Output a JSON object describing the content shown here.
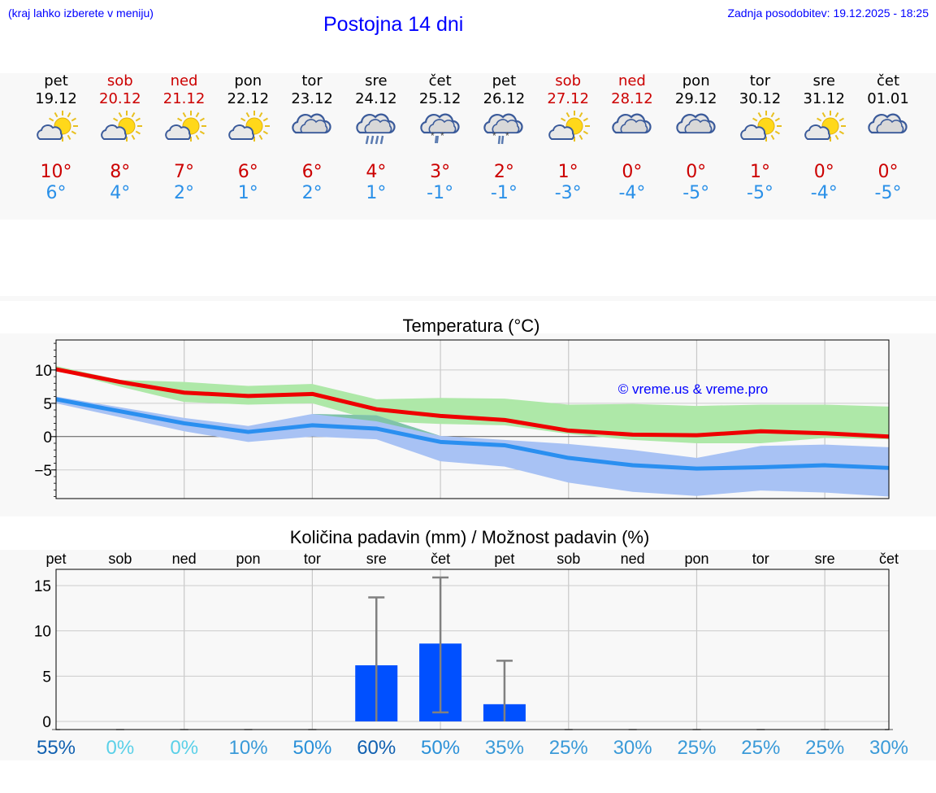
{
  "header": {
    "hint": "(kraj lahko izberete v meniju)",
    "title": "Postojna 14 dni",
    "updated": "Zadnja posodobitev: 19.12.2025 - 18:25"
  },
  "days": [
    {
      "name": "pet",
      "date": "19.12",
      "weekend": false,
      "icon": "sun-cloud-icon",
      "tmax": "10°",
      "tmin": "6°",
      "precip_chance": "55%"
    },
    {
      "name": "sob",
      "date": "20.12",
      "weekend": true,
      "icon": "sun-cloud-icon",
      "tmax": "8°",
      "tmin": "4°",
      "precip_chance": "0%"
    },
    {
      "name": "ned",
      "date": "21.12",
      "weekend": true,
      "icon": "sun-cloud-icon",
      "tmax": "7°",
      "tmin": "2°",
      "precip_chance": "0%"
    },
    {
      "name": "pon",
      "date": "22.12",
      "weekend": false,
      "icon": "sun-cloud-icon",
      "tmax": "6°",
      "tmin": "1°",
      "precip_chance": "10%"
    },
    {
      "name": "tor",
      "date": "23.12",
      "weekend": false,
      "icon": "cloud-icon",
      "tmax": "6°",
      "tmin": "2°",
      "precip_chance": "50%"
    },
    {
      "name": "sre",
      "date": "24.12",
      "weekend": false,
      "icon": "cloud-rain-icon",
      "tmax": "4°",
      "tmin": "1°",
      "precip_chance": "60%"
    },
    {
      "name": "čet",
      "date": "25.12",
      "weekend": false,
      "icon": "cloud-snow-icon",
      "tmax": "3°",
      "tmin": "-1°",
      "precip_chance": "50%"
    },
    {
      "name": "pet",
      "date": "26.12",
      "weekend": false,
      "icon": "cloud-sleet-icon",
      "tmax": "2°",
      "tmin": "-1°",
      "precip_chance": "35%"
    },
    {
      "name": "sob",
      "date": "27.12",
      "weekend": true,
      "icon": "sun-cloud-icon",
      "tmax": "1°",
      "tmin": "-3°",
      "precip_chance": "25%"
    },
    {
      "name": "ned",
      "date": "28.12",
      "weekend": true,
      "icon": "cloud-icon",
      "tmax": "0°",
      "tmin": "-4°",
      "precip_chance": "30%"
    },
    {
      "name": "pon",
      "date": "29.12",
      "weekend": false,
      "icon": "cloud-icon",
      "tmax": "0°",
      "tmin": "-5°",
      "precip_chance": "25%"
    },
    {
      "name": "tor",
      "date": "30.12",
      "weekend": false,
      "icon": "sun-cloud-icon",
      "tmax": "1°",
      "tmin": "-5°",
      "precip_chance": "25%"
    },
    {
      "name": "sre",
      "date": "31.12",
      "weekend": false,
      "icon": "sun-cloud-icon",
      "tmax": "0°",
      "tmin": "-4°",
      "precip_chance": "25%"
    },
    {
      "name": "čet",
      "date": "01.01",
      "weekend": false,
      "icon": "cloud-icon",
      "tmax": "0°",
      "tmin": "-5°",
      "precip_chance": "30%"
    }
  ],
  "colors": {
    "max_line": "#ee0000",
    "min_line": "#2a8ff0",
    "max_band": "#aee8a8",
    "min_band": "#a8c2f4",
    "overlap_band": "#80c4a8",
    "bar": "#0050ff",
    "error": "#808080",
    "weekend": "#cc0000"
  },
  "chart_data": [
    {
      "type": "line",
      "title": "Temperatura (°C)",
      "watermark": "© vreme.us & vreme.pro",
      "x": [
        0,
        1,
        2,
        3,
        4,
        5,
        6,
        7,
        8,
        9,
        10,
        11,
        12,
        13
      ],
      "ylim": [
        -9.3,
        14.5
      ],
      "yticks": [
        -5,
        0,
        5,
        10
      ],
      "ytick_labels": [
        "−5",
        "0",
        "5",
        "10"
      ],
      "series": [
        {
          "name": "max",
          "values": [
            10.1,
            8.2,
            6.6,
            6.1,
            6.4,
            4.1,
            3.1,
            2.5,
            0.9,
            0.3,
            0.2,
            0.8,
            0.5,
            0.0
          ],
          "band_low": [
            10.0,
            7.5,
            5.2,
            4.8,
            5.0,
            2.3,
            1.9,
            1.7,
            0.4,
            -0.5,
            -1.0,
            -1.0,
            -0.2,
            -0.4
          ],
          "band_high": [
            10.6,
            8.5,
            8.2,
            7.6,
            7.9,
            5.6,
            5.8,
            5.7,
            4.8,
            4.9,
            4.6,
            4.8,
            4.8,
            4.5
          ]
        },
        {
          "name": "min",
          "values": [
            5.6,
            3.8,
            2.0,
            0.7,
            1.7,
            1.2,
            -0.8,
            -1.3,
            -3.2,
            -4.3,
            -4.8,
            -4.6,
            -4.3,
            -4.7
          ],
          "band_low": [
            5.0,
            2.9,
            0.8,
            -0.8,
            0.0,
            -0.4,
            -3.7,
            -4.5,
            -6.9,
            -8.3,
            -8.9,
            -8.1,
            -8.4,
            -9.0
          ],
          "band_high": [
            6.0,
            4.4,
            2.8,
            1.6,
            3.4,
            3.2,
            0.1,
            -0.5,
            -1.1,
            -2.0,
            -3.2,
            -1.4,
            -1.2,
            -1.6
          ]
        }
      ]
    },
    {
      "type": "bar",
      "title": "Količina padavin (mm) / Možnost padavin (%)",
      "categories": [
        "pet",
        "sob",
        "ned",
        "pon",
        "tor",
        "sre",
        "čet",
        "pet",
        "sob",
        "ned",
        "pon",
        "tor",
        "sre",
        "čet"
      ],
      "values": [
        0,
        0,
        0,
        0,
        0,
        6.2,
        8.6,
        1.9,
        0,
        0,
        0,
        0,
        0,
        0
      ],
      "error_low": [
        0,
        0,
        0,
        0,
        0,
        0,
        1,
        0,
        0,
        0,
        0,
        0,
        0,
        0
      ],
      "error_high": [
        0,
        0,
        0,
        0,
        0,
        13.7,
        15.9,
        6.7,
        0,
        0,
        0,
        0,
        0,
        0
      ],
      "ylim": [
        -0.9,
        16.8
      ],
      "yticks": [
        0,
        5,
        10,
        15
      ],
      "ytick_labels": [
        "0",
        "5",
        "10",
        "15"
      ]
    }
  ]
}
